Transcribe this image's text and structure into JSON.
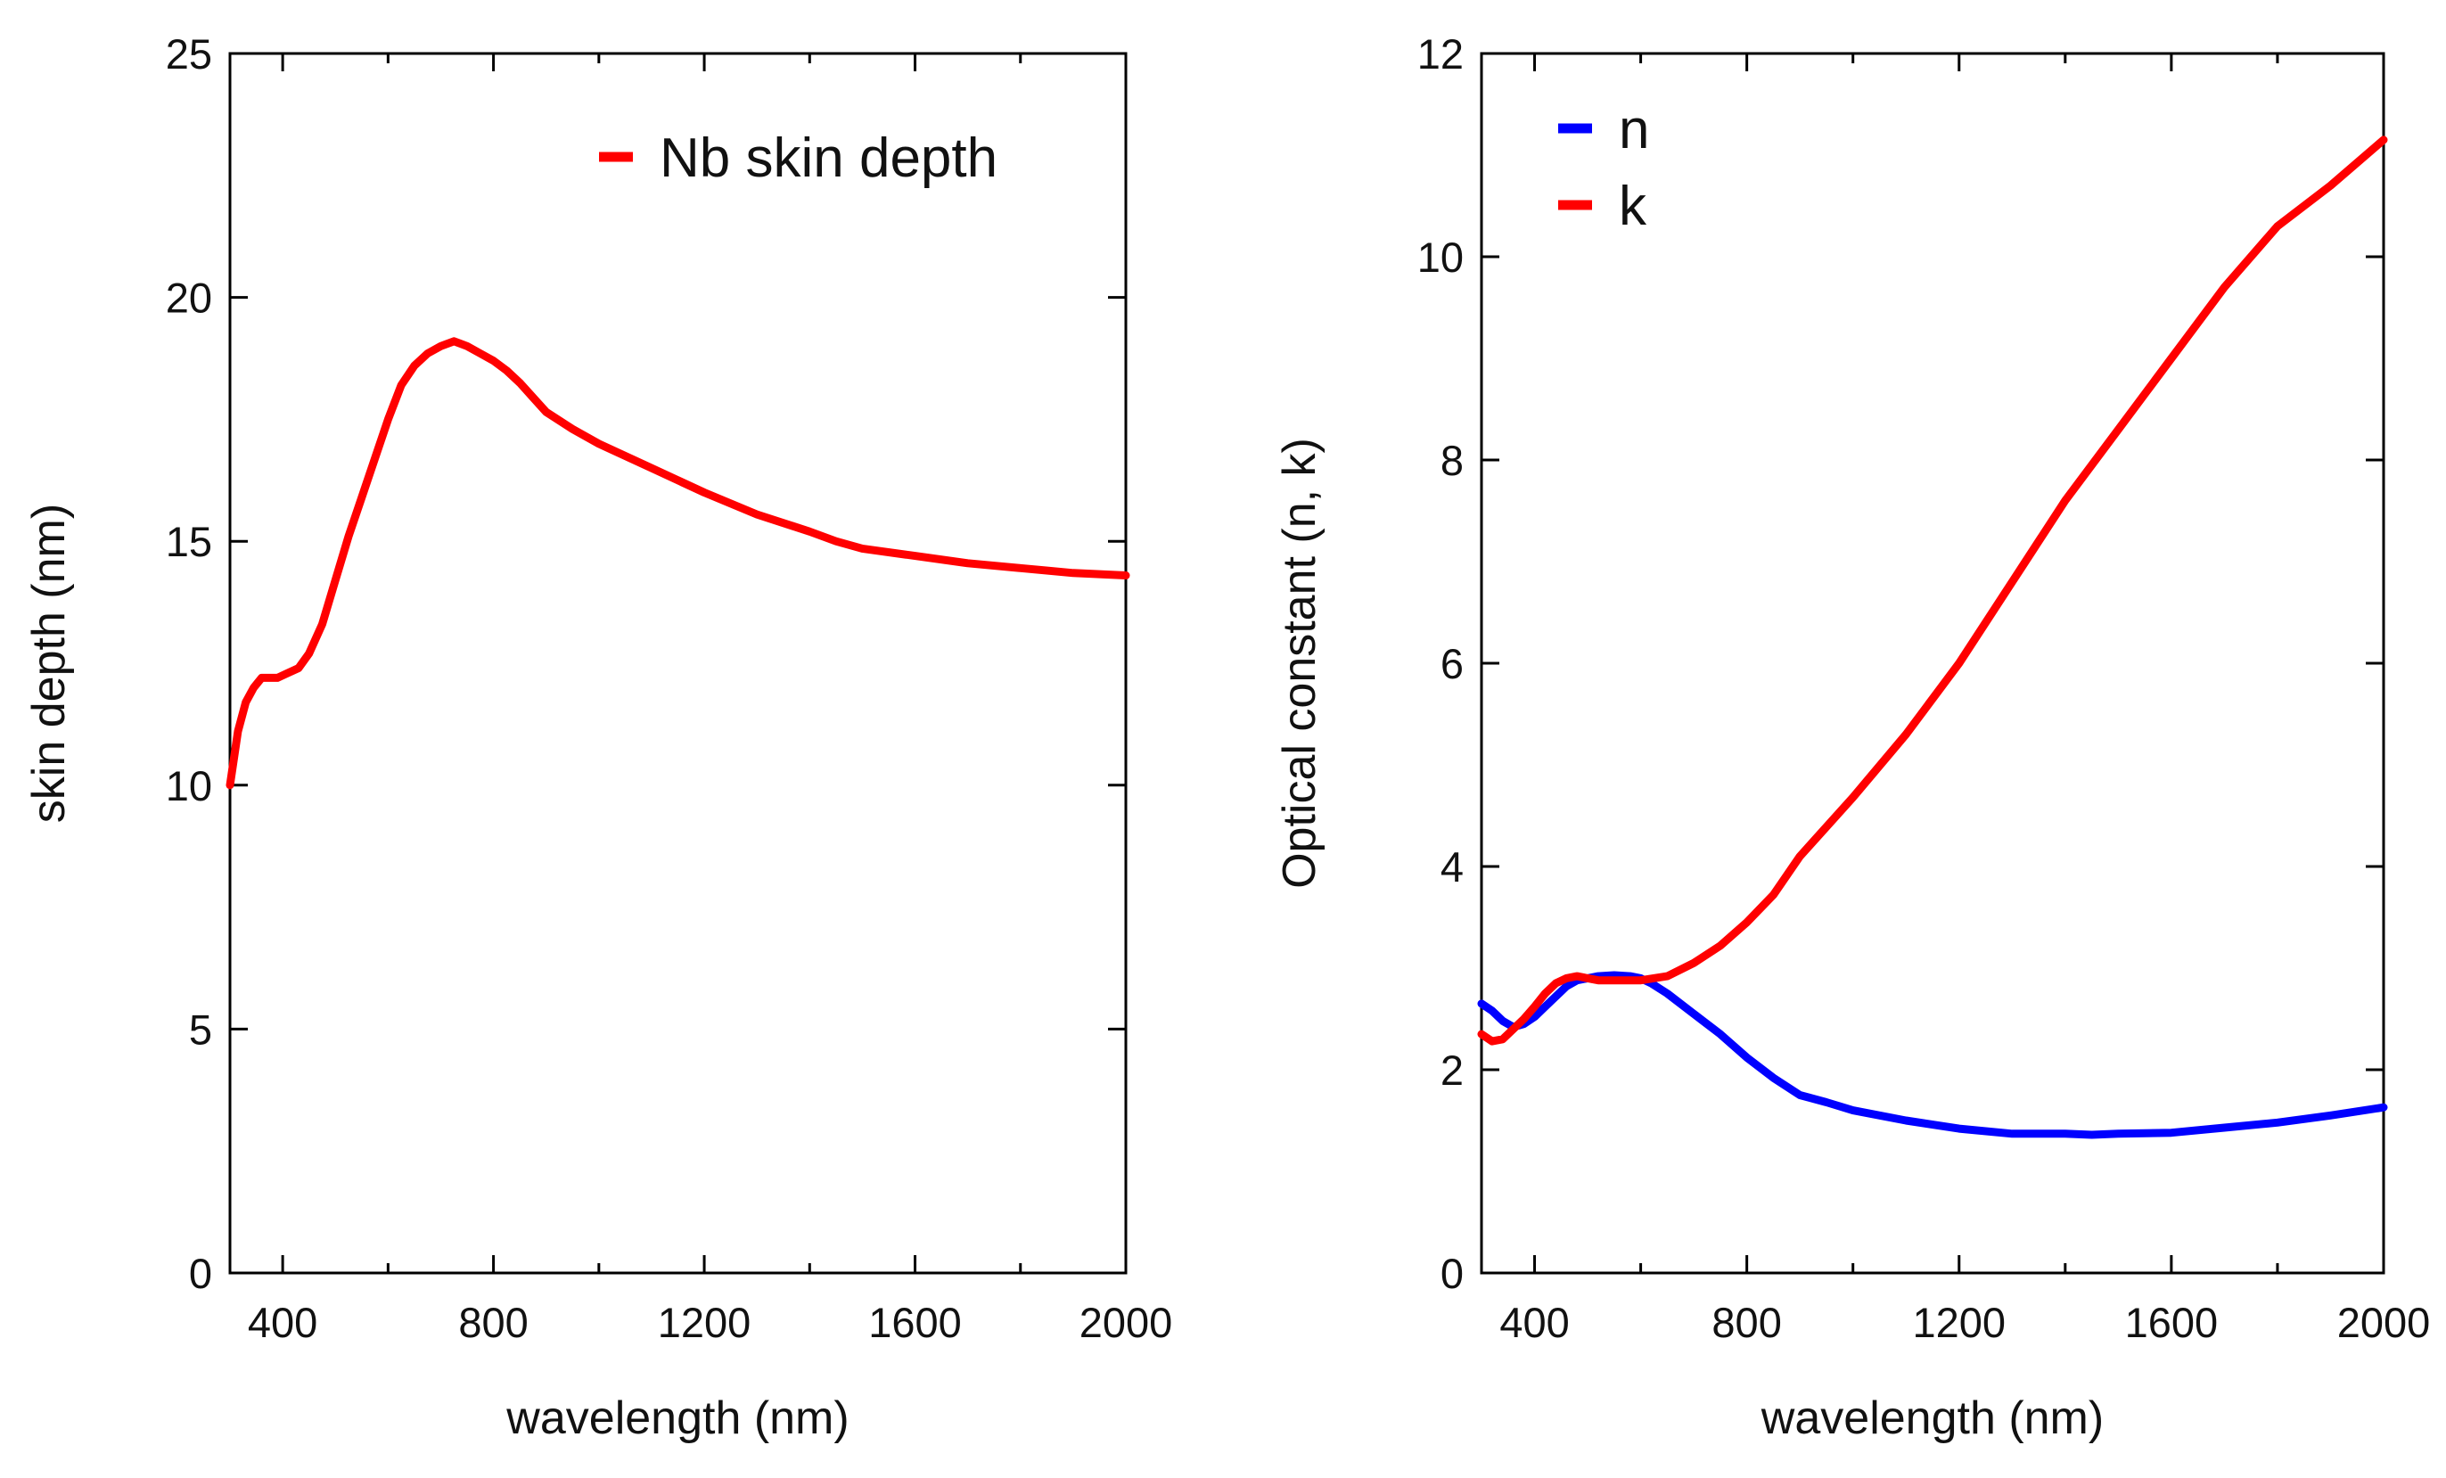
{
  "chart_data": [
    {
      "type": "line",
      "title": "",
      "xlabel": "wavelength (nm)",
      "ylabel": "skin depth (nm)",
      "xlim": [
        300,
        2000
      ],
      "ylim": [
        0,
        25
      ],
      "xticks": [
        400,
        800,
        1200,
        1600,
        2000
      ],
      "xticks_minor": [
        600,
        1000,
        1400,
        1800
      ],
      "yticks": [
        0,
        5,
        10,
        15,
        20,
        25
      ],
      "legend": "top-right",
      "grid": false,
      "series": [
        {
          "name": "Nb skin depth",
          "color": "#ff0000",
          "x": [
            300,
            315,
            330,
            345,
            360,
            375,
            390,
            410,
            430,
            450,
            475,
            500,
            525,
            550,
            575,
            600,
            625,
            650,
            675,
            700,
            725,
            750,
            775,
            800,
            825,
            850,
            875,
            900,
            950,
            1000,
            1100,
            1200,
            1300,
            1400,
            1450,
            1500,
            1600,
            1700,
            1800,
            1900,
            2000
          ],
          "y": [
            10.0,
            11.1,
            11.7,
            12.0,
            12.2,
            12.2,
            12.2,
            12.3,
            12.4,
            12.7,
            13.3,
            14.2,
            15.1,
            15.9,
            16.7,
            17.5,
            18.2,
            18.6,
            18.85,
            19.0,
            19.1,
            19.0,
            18.85,
            18.7,
            18.5,
            18.25,
            17.95,
            17.65,
            17.3,
            17.0,
            16.5,
            16.0,
            15.55,
            15.2,
            15.0,
            14.85,
            14.7,
            14.55,
            14.45,
            14.35,
            14.3
          ]
        }
      ]
    },
    {
      "type": "line",
      "title": "",
      "xlabel": "wavelength (nm)",
      "ylabel": "Optical constant (n, k)",
      "xlim": [
        300,
        2000
      ],
      "ylim": [
        0,
        12
      ],
      "xticks": [
        400,
        800,
        1200,
        1600,
        2000
      ],
      "xticks_minor": [
        600,
        1000,
        1400,
        1800
      ],
      "yticks": [
        0,
        2,
        4,
        6,
        8,
        10,
        12
      ],
      "legend": "top-left",
      "grid": false,
      "series": [
        {
          "name": "n",
          "color": "#0000ff",
          "x": [
            300,
            320,
            340,
            360,
            380,
            400,
            420,
            440,
            460,
            480,
            500,
            520,
            550,
            580,
            600,
            620,
            650,
            700,
            750,
            800,
            850,
            900,
            950,
            1000,
            1100,
            1200,
            1300,
            1400,
            1450,
            1500,
            1600,
            1700,
            1800,
            1900,
            2000
          ],
          "y": [
            2.65,
            2.58,
            2.48,
            2.42,
            2.45,
            2.52,
            2.62,
            2.72,
            2.82,
            2.88,
            2.9,
            2.92,
            2.93,
            2.92,
            2.9,
            2.85,
            2.75,
            2.55,
            2.35,
            2.12,
            1.92,
            1.75,
            1.68,
            1.6,
            1.5,
            1.42,
            1.37,
            1.37,
            1.36,
            1.37,
            1.38,
            1.43,
            1.48,
            1.55,
            1.63
          ]
        },
        {
          "name": "k",
          "color": "#ff0000",
          "x": [
            300,
            320,
            340,
            360,
            380,
            400,
            420,
            440,
            460,
            480,
            500,
            520,
            550,
            580,
            600,
            650,
            700,
            750,
            800,
            850,
            900,
            1000,
            1100,
            1200,
            1300,
            1400,
            1500,
            1600,
            1700,
            1800,
            1900,
            2000
          ],
          "y": [
            2.35,
            2.28,
            2.3,
            2.4,
            2.5,
            2.62,
            2.75,
            2.85,
            2.9,
            2.92,
            2.9,
            2.88,
            2.88,
            2.88,
            2.88,
            2.92,
            3.05,
            3.22,
            3.45,
            3.72,
            4.1,
            4.68,
            5.3,
            6.0,
            6.8,
            7.6,
            8.3,
            9.0,
            9.7,
            10.3,
            10.7,
            11.15
          ]
        }
      ]
    }
  ]
}
